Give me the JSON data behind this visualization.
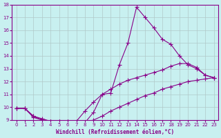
{
  "xlabel": "Windchill (Refroidissement éolien,°C)",
  "xlim": [
    -0.5,
    23.5
  ],
  "ylim": [
    9,
    18
  ],
  "xticks": [
    0,
    1,
    2,
    3,
    4,
    5,
    6,
    7,
    8,
    9,
    10,
    11,
    12,
    13,
    14,
    15,
    16,
    17,
    18,
    19,
    20,
    21,
    22,
    23
  ],
  "yticks": [
    9,
    10,
    11,
    12,
    13,
    14,
    15,
    16,
    17,
    18
  ],
  "bg_color": "#c8f0f0",
  "line_color": "#880088",
  "grid_color": "#b0c8c8",
  "spike_x": [
    0,
    1,
    2,
    3,
    4,
    5,
    6,
    7,
    8,
    9,
    10,
    11,
    12,
    13,
    14,
    15,
    16,
    17,
    18,
    19,
    20,
    21,
    22,
    23
  ],
  "spike_y": [
    9.9,
    9.9,
    9.2,
    9.0,
    8.9,
    8.9,
    8.9,
    8.8,
    8.8,
    9.6,
    11.0,
    11.1,
    13.3,
    15.0,
    17.8,
    17.0,
    16.2,
    15.3,
    14.9,
    14.0,
    13.3,
    13.0,
    12.5,
    12.3
  ],
  "mid_x": [
    0,
    1,
    2,
    3,
    4,
    5,
    6,
    7,
    8,
    9,
    10,
    11,
    12,
    13,
    14,
    15,
    16,
    17,
    18,
    19,
    20,
    21,
    22,
    23
  ],
  "mid_y": [
    9.9,
    9.9,
    9.3,
    9.1,
    8.9,
    8.9,
    8.9,
    8.9,
    9.7,
    10.4,
    11.0,
    11.4,
    11.8,
    12.1,
    12.3,
    12.5,
    12.7,
    12.9,
    13.2,
    13.4,
    13.4,
    13.1,
    12.5,
    12.3
  ],
  "bot_x": [
    0,
    1,
    2,
    3,
    4,
    5,
    6,
    7,
    8,
    9,
    10,
    11,
    12,
    13,
    14,
    15,
    16,
    17,
    18,
    19,
    20,
    21,
    22,
    23
  ],
  "bot_y": [
    9.9,
    9.9,
    9.3,
    9.0,
    8.9,
    8.9,
    8.9,
    8.8,
    8.8,
    9.0,
    9.3,
    9.7,
    10.0,
    10.3,
    10.6,
    10.9,
    11.1,
    11.4,
    11.6,
    11.8,
    12.0,
    12.1,
    12.2,
    12.3
  ],
  "marker": "+",
  "markersize": 4,
  "linewidth": 0.8
}
